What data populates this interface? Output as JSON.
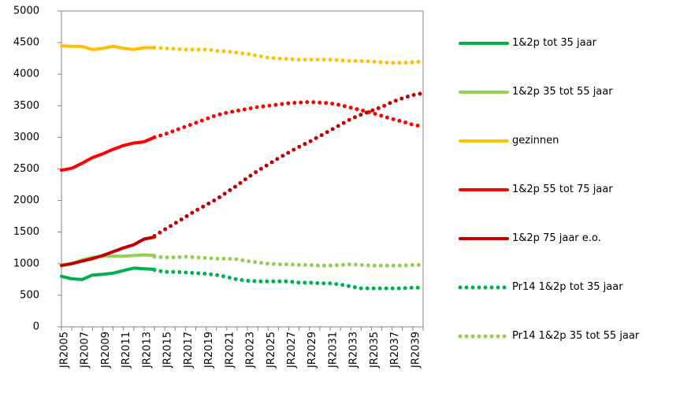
{
  "chart_data": {
    "type": "line",
    "categories": [
      "JR2005",
      null,
      "JR2007",
      null,
      "JR2009",
      null,
      "JR2011",
      null,
      "JR2013",
      null,
      "JR2015",
      null,
      "JR2017",
      null,
      "JR2019",
      null,
      "JR2021",
      null,
      "JR2023",
      null,
      "JR2025",
      null,
      "JR2027",
      null,
      "JR2029",
      null,
      "JR2031",
      null,
      "JR2033",
      null,
      "JR2035",
      null,
      "JR2037",
      null,
      "JR2039",
      null
    ],
    "ylim": [
      0,
      5000
    ],
    "yticks": [
      0,
      500,
      1000,
      1500,
      2000,
      2500,
      3000,
      3500,
      4000,
      4500,
      5000
    ],
    "grid": false,
    "legend": "right",
    "series": [
      {
        "name": "1&2p tot 35 jaar",
        "color": "#00b050",
        "style": "solid",
        "values": [
          800,
          760,
          750,
          820,
          830,
          850,
          890,
          930,
          920,
          910,
          null,
          null,
          null,
          null,
          null,
          null,
          null,
          null,
          null,
          null,
          null,
          null,
          null,
          null,
          null,
          null,
          null,
          null,
          null,
          null,
          null,
          null,
          null,
          null,
          null,
          null
        ]
      },
      {
        "name": "1&2p 35 tot 55 jaar",
        "color": "#92d050",
        "style": "solid",
        "values": [
          980,
          1000,
          1060,
          1100,
          1120,
          1120,
          1120,
          1130,
          1140,
          1130,
          null,
          null,
          null,
          null,
          null,
          null,
          null,
          null,
          null,
          null,
          null,
          null,
          null,
          null,
          null,
          null,
          null,
          null,
          null,
          null,
          null,
          null,
          null,
          null,
          null,
          null
        ]
      },
      {
        "name": "gezinnen",
        "color": "#ffc000",
        "style": "solid",
        "values": [
          4450,
          4440,
          4440,
          4390,
          4410,
          4440,
          4410,
          4390,
          4420,
          4420,
          null,
          null,
          null,
          null,
          null,
          null,
          null,
          null,
          null,
          null,
          null,
          null,
          null,
          null,
          null,
          null,
          null,
          null,
          null,
          null,
          null,
          null,
          null,
          null,
          null,
          null
        ]
      },
      {
        "name": "1&2p 55 tot 75 jaar",
        "color": "#ff0000",
        "style": "solid",
        "values": [
          2480,
          2510,
          2590,
          2680,
          2740,
          2810,
          2870,
          2910,
          2930,
          3000,
          null,
          null,
          null,
          null,
          null,
          null,
          null,
          null,
          null,
          null,
          null,
          null,
          null,
          null,
          null,
          null,
          null,
          null,
          null,
          null,
          null,
          null,
          null,
          null,
          null,
          null
        ]
      },
      {
        "name": "1&2p 75 jaar e.o.",
        "color": "#c00000",
        "style": "solid",
        "values": [
          970,
          1000,
          1040,
          1080,
          1130,
          1190,
          1250,
          1300,
          1390,
          1420,
          null,
          null,
          null,
          null,
          null,
          null,
          null,
          null,
          null,
          null,
          null,
          null,
          null,
          null,
          null,
          null,
          null,
          null,
          null,
          null,
          null,
          null,
          null,
          null,
          null,
          null
        ]
      },
      {
        "name": "Pr14 1&2p tot 35 jaar",
        "color": "#00b050",
        "style": "dotted",
        "values": [
          null,
          null,
          null,
          null,
          null,
          null,
          null,
          null,
          null,
          900,
          870,
          870,
          860,
          850,
          840,
          820,
          790,
          750,
          730,
          720,
          720,
          720,
          720,
          700,
          700,
          690,
          690,
          670,
          640,
          610,
          610,
          610,
          610,
          610,
          620,
          620
        ]
      },
      {
        "name": "Pr14 1&2p 35 tot 55 jaar",
        "color": "#92d050",
        "style": "dotted",
        "values": [
          null,
          null,
          null,
          null,
          null,
          null,
          null,
          null,
          null,
          1110,
          1100,
          1100,
          1110,
          1100,
          1090,
          1080,
          1080,
          1070,
          1040,
          1020,
          1000,
          990,
          990,
          980,
          980,
          970,
          970,
          980,
          990,
          980,
          970,
          970,
          970,
          970,
          980,
          980
        ]
      },
      {
        "color": "#ffc000",
        "style": "dotted",
        "values": [
          null,
          null,
          null,
          null,
          null,
          null,
          null,
          null,
          null,
          4420,
          4410,
          4400,
          4390,
          4390,
          4390,
          4370,
          4360,
          4340,
          4320,
          4290,
          4260,
          4250,
          4240,
          4230,
          4230,
          4230,
          4230,
          4220,
          4210,
          4210,
          4200,
          4190,
          4180,
          4180,
          4190,
          4200
        ]
      },
      {
        "color": "#ff0000",
        "style": "dotted",
        "values": [
          null,
          null,
          null,
          null,
          null,
          null,
          null,
          null,
          null,
          3000,
          3050,
          3110,
          3170,
          3230,
          3290,
          3350,
          3390,
          3420,
          3450,
          3480,
          3500,
          3520,
          3540,
          3550,
          3560,
          3550,
          3540,
          3510,
          3470,
          3430,
          3390,
          3340,
          3290,
          3250,
          3200,
          3170
        ]
      },
      {
        "color": "#c00000",
        "style": "dotted",
        "values": [
          null,
          null,
          null,
          null,
          null,
          null,
          null,
          null,
          null,
          1440,
          1540,
          1640,
          1740,
          1840,
          1930,
          2020,
          2130,
          2240,
          2360,
          2470,
          2570,
          2670,
          2760,
          2850,
          2930,
          3020,
          3110,
          3200,
          3290,
          3360,
          3420,
          3480,
          3560,
          3620,
          3670,
          3700
        ]
      }
    ]
  }
}
